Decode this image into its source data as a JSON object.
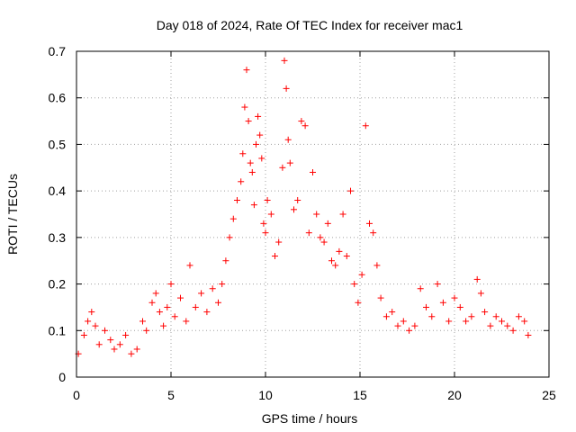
{
  "chart_data": {
    "type": "scatter",
    "title": "Day 018 of 2024, Rate Of TEC Index for receiver mac1",
    "xlabel": "GPS time / hours",
    "ylabel": "ROTI / TECUs",
    "xlim": [
      0,
      25
    ],
    "ylim": [
      0,
      0.7
    ],
    "xticks": [
      "0",
      "5",
      "10",
      "15",
      "20",
      "25"
    ],
    "yticks": [
      "0",
      "0.1",
      "0.2",
      "0.3",
      "0.4",
      "0.5",
      "0.6",
      "0.7"
    ],
    "grid": true,
    "marker": "+",
    "color": "#ff0000",
    "series": [
      {
        "name": "ROTI",
        "x": [
          0.1,
          0.4,
          0.6,
          0.8,
          1.0,
          1.2,
          1.5,
          1.8,
          2.0,
          2.3,
          2.6,
          2.9,
          3.2,
          3.5,
          3.7,
          4.0,
          4.2,
          4.4,
          4.6,
          4.8,
          5.0,
          5.2,
          5.5,
          5.8,
          6.0,
          6.3,
          6.6,
          6.9,
          7.2,
          7.5,
          7.7,
          7.9,
          8.1,
          8.3,
          8.5,
          8.7,
          8.8,
          8.9,
          9.0,
          9.1,
          9.2,
          9.3,
          9.4,
          9.5,
          9.6,
          9.7,
          9.8,
          9.9,
          10.0,
          10.1,
          10.3,
          10.5,
          10.7,
          10.9,
          11.0,
          11.1,
          11.2,
          11.3,
          11.5,
          11.7,
          11.9,
          12.1,
          12.3,
          12.5,
          12.7,
          12.9,
          13.1,
          13.3,
          13.5,
          13.7,
          13.9,
          14.1,
          14.3,
          14.5,
          14.7,
          14.9,
          15.1,
          15.3,
          15.5,
          15.7,
          15.9,
          16.1,
          16.4,
          16.7,
          17.0,
          17.3,
          17.6,
          17.9,
          18.2,
          18.5,
          18.8,
          19.1,
          19.4,
          19.7,
          20.0,
          20.3,
          20.6,
          20.9,
          21.2,
          21.4,
          21.6,
          21.9,
          22.2,
          22.5,
          22.8,
          23.1,
          23.4,
          23.7,
          23.9
        ],
        "y": [
          0.05,
          0.09,
          0.12,
          0.14,
          0.11,
          0.07,
          0.1,
          0.08,
          0.06,
          0.07,
          0.09,
          0.05,
          0.06,
          0.12,
          0.1,
          0.16,
          0.18,
          0.14,
          0.11,
          0.15,
          0.2,
          0.13,
          0.17,
          0.12,
          0.24,
          0.15,
          0.18,
          0.14,
          0.19,
          0.16,
          0.2,
          0.25,
          0.3,
          0.34,
          0.38,
          0.42,
          0.48,
          0.58,
          0.66,
          0.55,
          0.46,
          0.44,
          0.37,
          0.5,
          0.56,
          0.52,
          0.47,
          0.33,
          0.31,
          0.38,
          0.35,
          0.26,
          0.29,
          0.45,
          0.68,
          0.62,
          0.51,
          0.46,
          0.36,
          0.38,
          0.55,
          0.54,
          0.31,
          0.44,
          0.35,
          0.3,
          0.29,
          0.33,
          0.25,
          0.24,
          0.27,
          0.35,
          0.26,
          0.4,
          0.2,
          0.16,
          0.22,
          0.54,
          0.33,
          0.31,
          0.24,
          0.17,
          0.13,
          0.14,
          0.11,
          0.12,
          0.1,
          0.11,
          0.19,
          0.15,
          0.13,
          0.2,
          0.16,
          0.12,
          0.17,
          0.15,
          0.12,
          0.13,
          0.21,
          0.18,
          0.14,
          0.11,
          0.13,
          0.12,
          0.11,
          0.1,
          0.13,
          0.12,
          0.09
        ]
      }
    ]
  }
}
